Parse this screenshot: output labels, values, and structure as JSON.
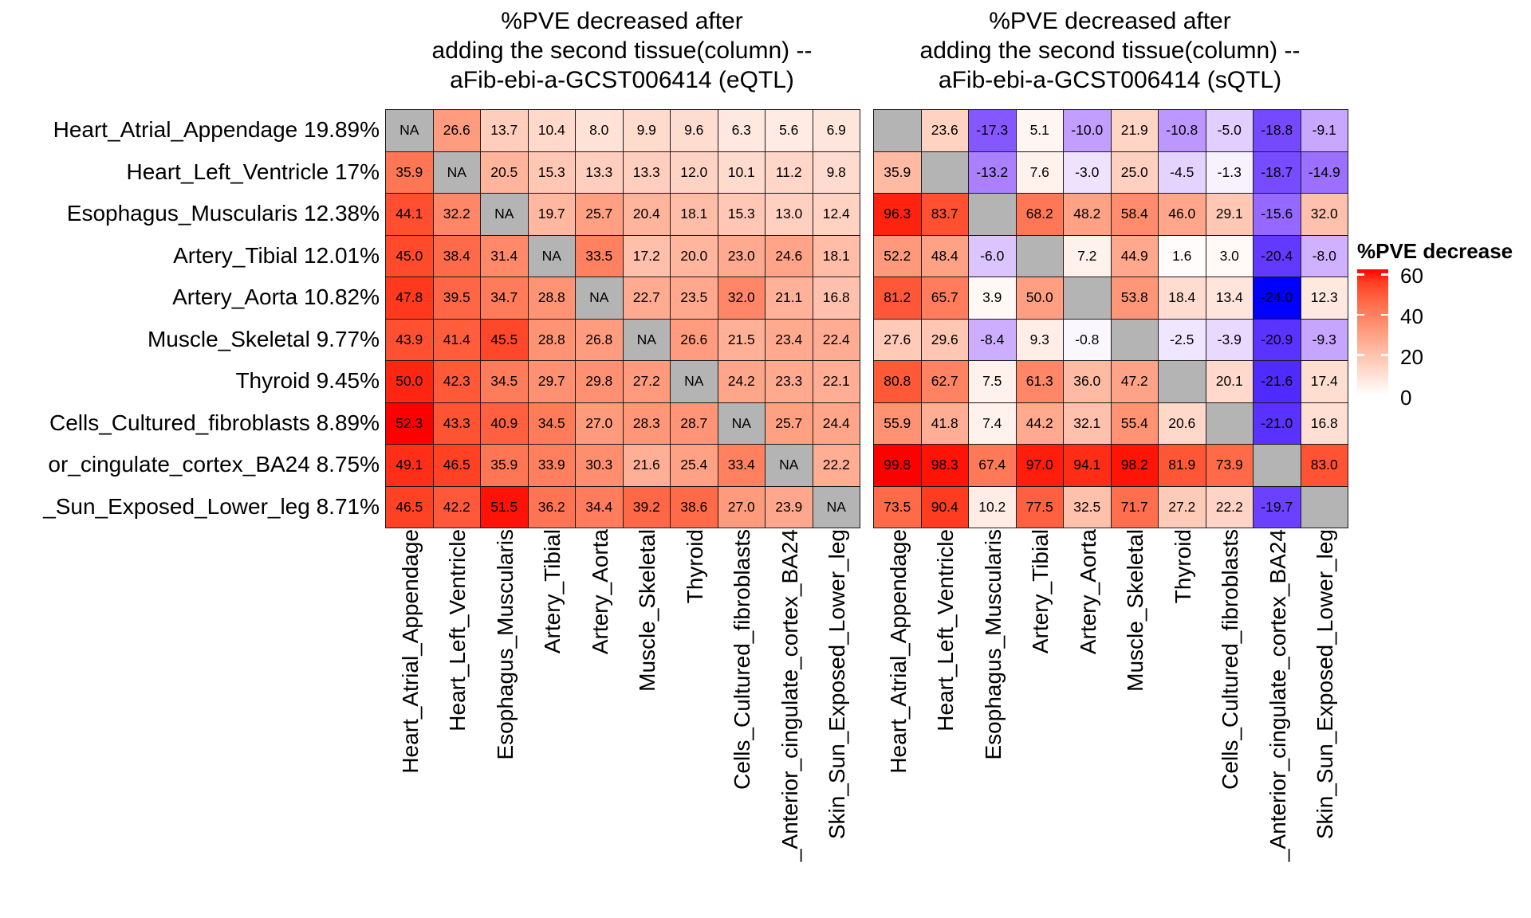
{
  "titles": {
    "left": [
      "%PVE decreased after",
      "adding the second tissue(column) --",
      "aFib-ebi-a-GCST006414 (eQTL)"
    ],
    "right": [
      "%PVE decreased after",
      "adding the second tissue(column) --",
      "aFib-ebi-a-GCST006414 (sQTL)"
    ]
  },
  "row_labels": [
    "Heart_Atrial_Appendage 19.89%",
    "Heart_Left_Ventricle 17%",
    "Esophagus_Muscularis 12.38%",
    "Artery_Tibial 12.01%",
    "Artery_Aorta 10.82%",
    "Muscle_Skeletal 9.77%",
    "Thyroid 9.45%",
    "Cells_Cultured_fibroblasts 8.89%",
    "or_cingulate_cortex_BA24 8.75%",
    "_Sun_Exposed_Lower_leg 8.71%"
  ],
  "col_labels": [
    "Heart_Atrial_Appendage",
    "Heart_Left_Ventricle",
    "Esophagus_Muscularis",
    "Artery_Tibial",
    "Artery_Aorta",
    "Muscle_Skeletal",
    "Thyroid",
    "Cells_Cultured_fibroblasts",
    "_Anterior_cingulate_cortex_BA24",
    "Skin_Sun_Exposed_Lower_leg"
  ],
  "chart_data": [
    {
      "type": "heatmap",
      "name": "eQTL",
      "title": "%PVE decreased after adding the second tissue(column) -- aFib-ebi-a-GCST006414 (eQTL)",
      "na_label": "NA",
      "color_scale": {
        "white_at": 0,
        "red_at": 52.3
      },
      "values": [
        [
          "NA",
          "26.6",
          "13.7",
          "10.4",
          "8.0",
          "9.9",
          "9.6",
          "6.3",
          "5.6",
          "6.9"
        ],
        [
          "35.9",
          "NA",
          "20.5",
          "15.3",
          "13.3",
          "13.3",
          "12.0",
          "10.1",
          "11.2",
          "9.8"
        ],
        [
          "44.1",
          "32.2",
          "NA",
          "19.7",
          "25.7",
          "20.4",
          "18.1",
          "15.3",
          "13.0",
          "12.4"
        ],
        [
          "45.0",
          "38.4",
          "31.4",
          "NA",
          "33.5",
          "17.2",
          "20.0",
          "23.0",
          "24.6",
          "18.1"
        ],
        [
          "47.8",
          "39.5",
          "34.7",
          "28.8",
          "NA",
          "22.7",
          "23.5",
          "32.0",
          "21.1",
          "16.8"
        ],
        [
          "43.9",
          "41.4",
          "45.5",
          "28.8",
          "26.8",
          "NA",
          "26.6",
          "21.5",
          "23.4",
          "22.4"
        ],
        [
          "50.0",
          "42.3",
          "34.5",
          "29.7",
          "29.8",
          "27.2",
          "NA",
          "24.2",
          "23.3",
          "22.1"
        ],
        [
          "52.3",
          "43.3",
          "40.9",
          "34.5",
          "27.0",
          "28.3",
          "28.7",
          "NA",
          "25.7",
          "24.4"
        ],
        [
          "49.1",
          "46.5",
          "35.9",
          "33.9",
          "30.3",
          "21.6",
          "25.4",
          "33.4",
          "NA",
          "22.2"
        ],
        [
          "46.5",
          "42.2",
          "51.5",
          "36.2",
          "34.4",
          "39.2",
          "38.6",
          "27.0",
          "23.9",
          "NA"
        ]
      ]
    },
    {
      "type": "heatmap",
      "name": "sQTL",
      "title": "%PVE decreased after adding the second tissue(column) -- aFib-ebi-a-GCST006414 (sQTL)",
      "na_label": "",
      "color_scale": {
        "white_at": 0,
        "red_at": 99.8,
        "blue_at": -24.0
      },
      "values": [
        [
          "NA",
          "23.6",
          "-17.3",
          "5.1",
          "-10.0",
          "21.9",
          "-10.8",
          "-5.0",
          "-18.8",
          "-9.1"
        ],
        [
          "35.9",
          "NA",
          "-13.2",
          "7.6",
          "-3.0",
          "25.0",
          "-4.5",
          "-1.3",
          "-18.7",
          "-14.9"
        ],
        [
          "96.3",
          "83.7",
          "NA",
          "68.2",
          "48.2",
          "58.4",
          "46.0",
          "29.1",
          "-15.6",
          "32.0"
        ],
        [
          "52.2",
          "48.4",
          "-6.0",
          "NA",
          "7.2",
          "44.9",
          "1.6",
          "3.0",
          "-20.4",
          "-8.0"
        ],
        [
          "81.2",
          "65.7",
          "3.9",
          "50.0",
          "NA",
          "53.8",
          "18.4",
          "13.4",
          "-24.0",
          "12.3"
        ],
        [
          "27.6",
          "29.6",
          "-8.4",
          "9.3",
          "-0.8",
          "NA",
          "-2.5",
          "-3.9",
          "-20.9",
          "-9.3"
        ],
        [
          "80.8",
          "62.7",
          "7.5",
          "61.3",
          "36.0",
          "47.2",
          "NA",
          "20.1",
          "-21.6",
          "17.4"
        ],
        [
          "55.9",
          "41.8",
          "7.4",
          "44.2",
          "32.1",
          "55.4",
          "20.6",
          "NA",
          "-21.0",
          "16.8"
        ],
        [
          "99.8",
          "98.3",
          "67.4",
          "97.0",
          "94.1",
          "98.2",
          "81.9",
          "73.9",
          "NA",
          "83.0"
        ],
        [
          "73.5",
          "90.4",
          "10.2",
          "77.5",
          "32.5",
          "71.7",
          "27.2",
          "22.2",
          "-19.7",
          "NA"
        ]
      ]
    }
  ],
  "legend": {
    "title": "%PVE decrease",
    "ticks": [
      "60",
      "40",
      "20",
      "0"
    ],
    "range": [
      0,
      60
    ],
    "top_color": "#ff0000",
    "bottom_color": "#ffffff"
  },
  "colors": {
    "na_gray": "#b4b4b4",
    "high_red": "#ff0000",
    "low_blue": "#0000ff",
    "mid_white": "#ffffff",
    "cell_border": "#1a1a1a"
  }
}
